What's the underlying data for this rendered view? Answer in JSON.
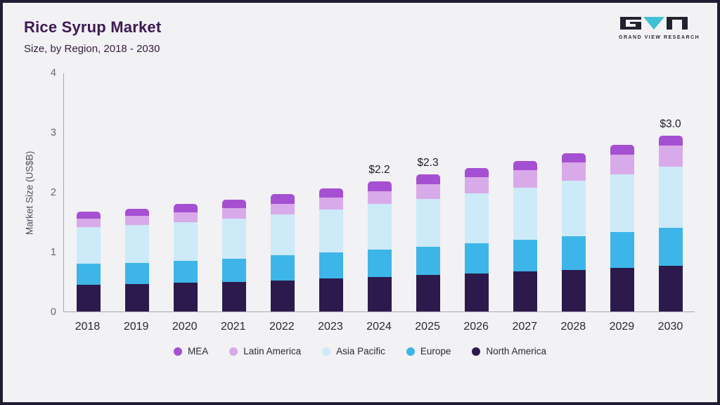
{
  "header": {
    "title": "Rice Syrup Market",
    "subtitle": "Size, by Region, 2018 - 2030"
  },
  "logo": {
    "text": "GRAND VIEW RESEARCH",
    "dark_color": "#23202f",
    "accent_color": "#3fc0d4"
  },
  "colors": {
    "background": "#f2f1f4",
    "frame_border": "#201c32",
    "title": "#3c1a52",
    "axis_line": "#aaa6b2"
  },
  "chart_data": {
    "type": "bar",
    "stacked": true,
    "title": "Rice Syrup Market Size, by Region, 2018 - 2030",
    "ylabel": "Market Size (US$B)",
    "xlabel": "",
    "ylim": [
      0,
      4
    ],
    "yticks": [
      0,
      1,
      2,
      3,
      4
    ],
    "grid": false,
    "legend_position": "bottom",
    "categories": [
      "2018",
      "2019",
      "2020",
      "2021",
      "2022",
      "2023",
      "2024",
      "2025",
      "2026",
      "2027",
      "2028",
      "2029",
      "2030"
    ],
    "series": [
      {
        "name": "North America",
        "color": "#2c1a4d",
        "values": [
          0.45,
          0.46,
          0.48,
          0.5,
          0.52,
          0.55,
          0.58,
          0.61,
          0.64,
          0.67,
          0.7,
          0.73,
          0.77
        ]
      },
      {
        "name": "Europe",
        "color": "#3db5e8",
        "values": [
          0.35,
          0.36,
          0.37,
          0.39,
          0.42,
          0.44,
          0.46,
          0.48,
          0.51,
          0.53,
          0.56,
          0.6,
          0.63
        ]
      },
      {
        "name": "Asia Pacific",
        "color": "#cdeaf8",
        "values": [
          0.62,
          0.63,
          0.65,
          0.67,
          0.69,
          0.72,
          0.76,
          0.8,
          0.83,
          0.88,
          0.93,
          0.97,
          1.03
        ]
      },
      {
        "name": "Latin America",
        "color": "#d9aae9",
        "values": [
          0.14,
          0.15,
          0.16,
          0.17,
          0.18,
          0.2,
          0.22,
          0.24,
          0.27,
          0.29,
          0.31,
          0.33,
          0.35
        ]
      },
      {
        "name": "MEA",
        "color": "#a550d2",
        "values": [
          0.11,
          0.12,
          0.14,
          0.15,
          0.16,
          0.16,
          0.16,
          0.17,
          0.16,
          0.16,
          0.16,
          0.17,
          0.17
        ]
      }
    ],
    "annotations": [
      {
        "category": "2024",
        "label": "$2.2"
      },
      {
        "category": "2025",
        "label": "$2.3"
      },
      {
        "category": "2030",
        "label": "$3.0"
      }
    ],
    "legend": [
      {
        "label": "MEA",
        "color": "#a550d2"
      },
      {
        "label": "Latin America",
        "color": "#d9aae9"
      },
      {
        "label": "Asia Pacific",
        "color": "#cdeaf8"
      },
      {
        "label": "Europe",
        "color": "#3db5e8"
      },
      {
        "label": "North America",
        "color": "#2c1a4d"
      }
    ]
  }
}
